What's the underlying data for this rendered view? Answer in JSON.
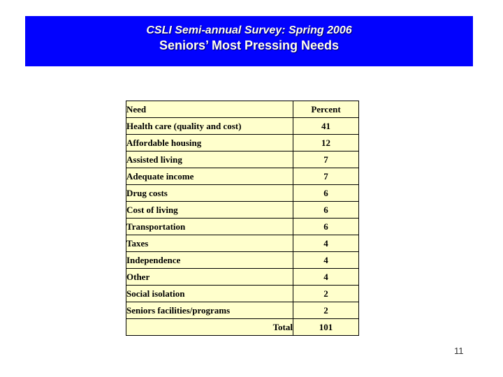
{
  "header": {
    "title": "CSLI Semi-annual Survey: Spring 2006",
    "subtitle": "Seniors’ Most Pressing Needs"
  },
  "table": {
    "headers": [
      "Need",
      "Percent"
    ],
    "rows": [
      {
        "need": "Health care (quality and cost)",
        "percent": "41"
      },
      {
        "need": "Affordable housing",
        "percent": "12"
      },
      {
        "need": "Assisted living",
        "percent": "7"
      },
      {
        "need": "Adequate income",
        "percent": "7"
      },
      {
        "need": "Drug costs",
        "percent": "6"
      },
      {
        "need": "Cost of living",
        "percent": "6"
      },
      {
        "need": "Transportation",
        "percent": "6"
      },
      {
        "need": "Taxes",
        "percent": "4"
      },
      {
        "need": "Independence",
        "percent": "4"
      },
      {
        "need": "Other",
        "percent": "4"
      },
      {
        "need": "Social isolation",
        "percent": "2"
      },
      {
        "need": "Seniors facilities/programs",
        "percent": "2"
      }
    ],
    "total_label": "Total",
    "total_value": "101"
  },
  "footer": {
    "page_number": "11"
  },
  "colors": {
    "banner_bg": "#0202FE",
    "banner_text": "#FFFFF0",
    "table_bg": "#FFFFCC",
    "table_border": "#000000",
    "table_text": "#000000",
    "page_number_text": "#333333"
  },
  "chart_data": {
    "type": "table",
    "title": "CSLI Semi-annual Survey: Spring 2006 — Seniors’ Most Pressing Needs",
    "columns": [
      "Need",
      "Percent"
    ],
    "categories": [
      "Health care (quality and cost)",
      "Affordable housing",
      "Assisted living",
      "Adequate income",
      "Drug costs",
      "Cost of living",
      "Transportation",
      "Taxes",
      "Independence",
      "Other",
      "Social isolation",
      "Seniors facilities/programs"
    ],
    "values": [
      41,
      12,
      7,
      7,
      6,
      6,
      6,
      4,
      4,
      4,
      2,
      2
    ],
    "total_label": "Total",
    "total": 101
  }
}
